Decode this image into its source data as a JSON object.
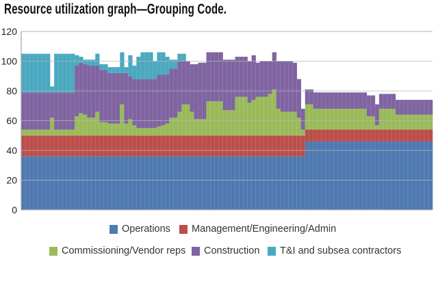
{
  "title": "Resource utilization graph—Grouping Code.",
  "chart_data": {
    "type": "bar",
    "stacked": true,
    "title": "Resource utilization graph—Grouping Code.",
    "xlabel": "",
    "ylabel": "",
    "ylim": [
      0,
      120
    ],
    "yticks": [
      "0",
      "20",
      "40",
      "60",
      "80",
      "100",
      "120"
    ],
    "grid": true,
    "legend_position": "bottom",
    "series": [
      {
        "name": "Operations",
        "color": "#4f79b1",
        "values": [
          36,
          36,
          36,
          36,
          36,
          36,
          36,
          36,
          36,
          36,
          36,
          36,
          36,
          36,
          36,
          36,
          36,
          36,
          36,
          36,
          36,
          36,
          36,
          36,
          36,
          36,
          36,
          36,
          36,
          36,
          36,
          36,
          36,
          36,
          36,
          36,
          36,
          36,
          36,
          36,
          36,
          36,
          36,
          36,
          36,
          36,
          36,
          36,
          36,
          36,
          36,
          36,
          36,
          36,
          36,
          36,
          36,
          36,
          36,
          36,
          36,
          36,
          36,
          36,
          36,
          36,
          36,
          36,
          36,
          46,
          46,
          46,
          46,
          46,
          46,
          46,
          46,
          46,
          46,
          46,
          46,
          46,
          46,
          46,
          46,
          46,
          46,
          46,
          46,
          46,
          46,
          46,
          46,
          46,
          46,
          46,
          46,
          46,
          46,
          46
        ]
      },
      {
        "name": "Management/Engineering/Admin",
        "color": "#bb4e4a",
        "values": [
          14,
          14,
          14,
          14,
          14,
          14,
          14,
          14,
          14,
          14,
          14,
          14,
          14,
          14,
          14,
          14,
          14,
          14,
          14,
          14,
          14,
          14,
          14,
          14,
          14,
          14,
          14,
          14,
          14,
          14,
          14,
          14,
          14,
          14,
          14,
          14,
          14,
          14,
          14,
          14,
          14,
          14,
          14,
          14,
          14,
          14,
          14,
          14,
          14,
          14,
          14,
          14,
          14,
          14,
          14,
          14,
          14,
          14,
          14,
          14,
          14,
          14,
          14,
          14,
          14,
          14,
          14,
          14,
          14,
          8,
          8,
          8,
          8,
          8,
          8,
          8,
          8,
          8,
          8,
          8,
          8,
          8,
          8,
          8,
          8,
          8,
          8,
          8,
          8,
          8,
          8,
          8,
          8,
          8,
          8,
          8,
          8,
          8,
          8,
          8
        ]
      },
      {
        "name": "Commissioning/Vendor reps",
        "color": "#9aba5a",
        "values": [
          4,
          4,
          4,
          4,
          4,
          4,
          4,
          12,
          4,
          4,
          4,
          4,
          4,
          13,
          15,
          14,
          12,
          12,
          16,
          9,
          9,
          8,
          8,
          8,
          21,
          8,
          11,
          7,
          5,
          5,
          5,
          5,
          5,
          6,
          7,
          8,
          12,
          12,
          16,
          21,
          21,
          16,
          11,
          11,
          11,
          23,
          23,
          23,
          23,
          17,
          17,
          17,
          26,
          26,
          26,
          22,
          24,
          26,
          26,
          26,
          28,
          31,
          18,
          16,
          16,
          16,
          16,
          12,
          4,
          17,
          17,
          14,
          14,
          14,
          14,
          14,
          14,
          14,
          14,
          14,
          14,
          14,
          14,
          14,
          9,
          9,
          3,
          14,
          14,
          14,
          14,
          10,
          10,
          10,
          10,
          10,
          10,
          10,
          10,
          10
        ]
      },
      {
        "name": "Construction",
        "color": "#7f64a1",
        "values": [
          25,
          25,
          25,
          25,
          25,
          25,
          25,
          17,
          25,
          25,
          25,
          25,
          25,
          34,
          34,
          34,
          35,
          35,
          31,
          35,
          35,
          34,
          34,
          34,
          21,
          34,
          29,
          31,
          33,
          33,
          33,
          33,
          33,
          35,
          34,
          33,
          33,
          33,
          34,
          29,
          29,
          32,
          37,
          38,
          38,
          33,
          33,
          33,
          33,
          34,
          34,
          34,
          27,
          27,
          27,
          28,
          30,
          23,
          24,
          24,
          22,
          25,
          32,
          34,
          34,
          34,
          33,
          26,
          14,
          10,
          10,
          11,
          11,
          11,
          11,
          11,
          11,
          11,
          11,
          11,
          11,
          11,
          11,
          11,
          14,
          14,
          14,
          10,
          10,
          10,
          10,
          10,
          10,
          10,
          10,
          10,
          10,
          10,
          10,
          10
        ]
      },
      {
        "name": "T&I and subsea contractors",
        "color": "#4aa9c0",
        "values": [
          26,
          26,
          26,
          26,
          26,
          26,
          26,
          4,
          26,
          26,
          26,
          26,
          26,
          7,
          4,
          3,
          4,
          4,
          8,
          4,
          4,
          4,
          4,
          4,
          14,
          4,
          14,
          9,
          15,
          18,
          18,
          18,
          12,
          15,
          15,
          12,
          6,
          6,
          5,
          5,
          0,
          0,
          0,
          0,
          0,
          0,
          0,
          0,
          0,
          0,
          0,
          0,
          0,
          0,
          0,
          0,
          0,
          0,
          0,
          0,
          0,
          0,
          0,
          0,
          0,
          0,
          0,
          0,
          0,
          0,
          0,
          0,
          0,
          0,
          0,
          0,
          0,
          0,
          0,
          0,
          0,
          0,
          0,
          0,
          0,
          0,
          0,
          0,
          0,
          0,
          0,
          0,
          0,
          0,
          0,
          0,
          0,
          0,
          0,
          0
        ]
      }
    ]
  }
}
